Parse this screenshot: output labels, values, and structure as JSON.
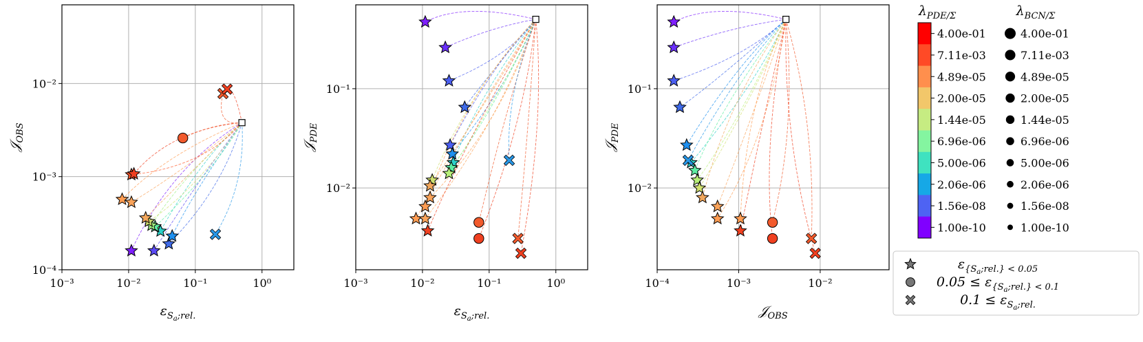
{
  "chart_data": {
    "type": "scatter",
    "x_scale": "log",
    "y_scale": "log",
    "grid": true,
    "panels": [
      {
        "xlabel": "ε_{S_a;rel.}",
        "ylabel": "𝒥_OBS",
        "xlim": [
          0.001,
          3.0
        ],
        "ylim": [
          0.0001,
          0.07
        ],
        "xticks": [
          "10⁻³",
          "10⁻²",
          "10⁻¹",
          "10⁰"
        ],
        "xtick_values": [
          0.001,
          0.01,
          0.1,
          1
        ],
        "yticks": [
          "10⁻⁴",
          "10⁻³",
          "10⁻²"
        ],
        "ytick_values": [
          0.0001,
          0.001,
          0.01
        ],
        "start_marker": {
          "x": 0.5,
          "y": 0.0038
        },
        "markers": [
          {
            "x": 0.011,
            "y": 0.00016,
            "marker": "star",
            "color": "#7f1fff"
          },
          {
            "x": 0.024,
            "y": 0.00016,
            "marker": "star",
            "color": "#5a4af4"
          },
          {
            "x": 0.04,
            "y": 0.00019,
            "marker": "star",
            "color": "#3f6ae8"
          },
          {
            "x": 0.045,
            "y": 0.00023,
            "marker": "star",
            "color": "#1e90f0"
          },
          {
            "x": 0.03,
            "y": 0.00026,
            "marker": "star",
            "color": "#2dd0c8"
          },
          {
            "x": 0.025,
            "y": 0.00029,
            "marker": "star",
            "color": "#5eeda2"
          },
          {
            "x": 0.022,
            "y": 0.0003,
            "marker": "star",
            "color": "#9ef080"
          },
          {
            "x": 0.02,
            "y": 0.00033,
            "marker": "star",
            "color": "#d0e070"
          },
          {
            "x": 0.018,
            "y": 0.00036,
            "marker": "star",
            "color": "#f2a75c"
          },
          {
            "x": 0.008,
            "y": 0.00057,
            "marker": "star",
            "color": "#ff9c52"
          },
          {
            "x": 0.011,
            "y": 0.00053,
            "marker": "star",
            "color": "#f9a35a"
          },
          {
            "x": 0.011,
            "y": 0.00105,
            "marker": "star",
            "color": "#ff5b2e"
          },
          {
            "x": 0.012,
            "y": 0.00107,
            "marker": "star",
            "color": "#f04020"
          },
          {
            "x": 0.065,
            "y": 0.0026,
            "marker": "circle",
            "color": "#f25a2c"
          },
          {
            "x": 0.2,
            "y": 0.00024,
            "marker": "cross",
            "color": "#2898e8"
          },
          {
            "x": 0.26,
            "y": 0.0078,
            "marker": "cross",
            "color": "#f25a2c"
          },
          {
            "x": 0.3,
            "y": 0.0087,
            "marker": "cross",
            "color": "#f04020"
          }
        ]
      },
      {
        "xlabel": "ε_{S_a;rel.}",
        "ylabel": "𝒥_PDE",
        "xlim": [
          0.001,
          3.0
        ],
        "ylim": [
          0.0015,
          0.7
        ],
        "xticks": [
          "10⁻³",
          "10⁻²",
          "10⁻¹",
          "10⁰"
        ],
        "xtick_values": [
          0.001,
          0.01,
          0.1,
          1
        ],
        "yticks": [
          "10⁻²",
          "10⁻¹"
        ],
        "ytick_values": [
          0.01,
          0.1
        ],
        "start_marker": {
          "x": 0.5,
          "y": 0.5
        },
        "markers": [
          {
            "x": 0.011,
            "y": 0.47,
            "marker": "star",
            "color": "#7f1fff"
          },
          {
            "x": 0.022,
            "y": 0.26,
            "marker": "star",
            "color": "#6a30fa"
          },
          {
            "x": 0.025,
            "y": 0.12,
            "marker": "star",
            "color": "#4a5ef0"
          },
          {
            "x": 0.043,
            "y": 0.065,
            "marker": "star",
            "color": "#3f6ae8"
          },
          {
            "x": 0.026,
            "y": 0.027,
            "marker": "star",
            "color": "#4a5ef0"
          },
          {
            "x": 0.028,
            "y": 0.022,
            "marker": "star",
            "color": "#1e90f0"
          },
          {
            "x": 0.029,
            "y": 0.018,
            "marker": "star",
            "color": "#2dd0c8"
          },
          {
            "x": 0.027,
            "y": 0.016,
            "marker": "star",
            "color": "#5eeda2"
          },
          {
            "x": 0.025,
            "y": 0.014,
            "marker": "star",
            "color": "#b8f078"
          },
          {
            "x": 0.014,
            "y": 0.012,
            "marker": "star",
            "color": "#d0e070"
          },
          {
            "x": 0.013,
            "y": 0.0105,
            "marker": "star",
            "color": "#f2a75c"
          },
          {
            "x": 0.013,
            "y": 0.008,
            "marker": "star",
            "color": "#f9a35a"
          },
          {
            "x": 0.011,
            "y": 0.0065,
            "marker": "star",
            "color": "#ff9c52"
          },
          {
            "x": 0.008,
            "y": 0.0049,
            "marker": "star",
            "color": "#ff9c52"
          },
          {
            "x": 0.011,
            "y": 0.0049,
            "marker": "star",
            "color": "#f9a35a"
          },
          {
            "x": 0.012,
            "y": 0.0037,
            "marker": "star",
            "color": "#f04020"
          },
          {
            "x": 0.07,
            "y": 0.0045,
            "marker": "circle",
            "color": "#f25a2c"
          },
          {
            "x": 0.07,
            "y": 0.0031,
            "marker": "circle",
            "color": "#f04020"
          },
          {
            "x": 0.2,
            "y": 0.019,
            "marker": "cross",
            "color": "#2898e8"
          },
          {
            "x": 0.27,
            "y": 0.0031,
            "marker": "cross",
            "color": "#f25a2c"
          },
          {
            "x": 0.3,
            "y": 0.0022,
            "marker": "cross",
            "color": "#f04020"
          }
        ]
      },
      {
        "xlabel": "𝒥_OBS",
        "ylabel": "𝒥_PDE",
        "xlim": [
          0.0001,
          0.07
        ],
        "ylim": [
          0.0015,
          0.7
        ],
        "xticks": [
          "10⁻⁴",
          "10⁻³",
          "10⁻²"
        ],
        "xtick_values": [
          0.0001,
          0.001,
          0.01
        ],
        "yticks": [
          "10⁻²",
          "10⁻¹"
        ],
        "ytick_values": [
          0.01,
          0.1
        ],
        "start_marker": {
          "x": 0.0038,
          "y": 0.5
        },
        "markers": [
          {
            "x": 0.00016,
            "y": 0.47,
            "marker": "star",
            "color": "#7f1fff"
          },
          {
            "x": 0.00016,
            "y": 0.26,
            "marker": "star",
            "color": "#6a30fa"
          },
          {
            "x": 0.00016,
            "y": 0.12,
            "marker": "star",
            "color": "#4a5ef0"
          },
          {
            "x": 0.00019,
            "y": 0.065,
            "marker": "star",
            "color": "#3f6ae8"
          },
          {
            "x": 0.00023,
            "y": 0.027,
            "marker": "star",
            "color": "#1e90f0"
          },
          {
            "x": 0.00026,
            "y": 0.018,
            "marker": "star",
            "color": "#2dd0c8"
          },
          {
            "x": 0.00029,
            "y": 0.015,
            "marker": "star",
            "color": "#5eeda2"
          },
          {
            "x": 0.00031,
            "y": 0.012,
            "marker": "star",
            "color": "#b8f078"
          },
          {
            "x": 0.00033,
            "y": 0.01,
            "marker": "star",
            "color": "#d0e070"
          },
          {
            "x": 0.00036,
            "y": 0.008,
            "marker": "star",
            "color": "#f2a75c"
          },
          {
            "x": 0.00055,
            "y": 0.0065,
            "marker": "star",
            "color": "#f9a35a"
          },
          {
            "x": 0.00055,
            "y": 0.0049,
            "marker": "star",
            "color": "#ff9c52"
          },
          {
            "x": 0.00105,
            "y": 0.0049,
            "marker": "star",
            "color": "#ff9c52"
          },
          {
            "x": 0.00105,
            "y": 0.0037,
            "marker": "star",
            "color": "#f04020"
          },
          {
            "x": 0.0026,
            "y": 0.0045,
            "marker": "circle",
            "color": "#f25a2c"
          },
          {
            "x": 0.0026,
            "y": 0.0031,
            "marker": "circle",
            "color": "#f04020"
          },
          {
            "x": 0.00024,
            "y": 0.019,
            "marker": "cross",
            "color": "#2898e8"
          },
          {
            "x": 0.0078,
            "y": 0.0031,
            "marker": "cross",
            "color": "#f25a2c"
          },
          {
            "x": 0.0087,
            "y": 0.0022,
            "marker": "cross",
            "color": "#f04020"
          }
        ]
      }
    ],
    "colorbar": {
      "title": "λ_PDE/Σ",
      "labels": [
        "4.00e-01",
        "7.11e-03",
        "4.89e-05",
        "2.00e-05",
        "1.44e-05",
        "6.96e-06",
        "5.00e-06",
        "2.06e-06",
        "1.56e-08",
        "1.00e-10"
      ],
      "colors": [
        "#ff0000",
        "#ff4a26",
        "#ff8f4d",
        "#f2c76a",
        "#c6ec82",
        "#84f5a0",
        "#3fe2c0",
        "#16a8e6",
        "#4e63f3",
        "#8000ff"
      ]
    },
    "size_legend": {
      "title": "λ_BCN/Σ",
      "labels": [
        "4.00e-01",
        "7.11e-03",
        "4.89e-05",
        "2.00e-05",
        "1.44e-05",
        "6.96e-06",
        "5.00e-06",
        "2.06e-06",
        "1.56e-08",
        "1.00e-10"
      ]
    },
    "marker_legend": [
      {
        "marker": "star",
        "label": "ε_{S_a;rel.} < 0.05"
      },
      {
        "marker": "circle",
        "label": "0.05 ≤ ε_{S_a;rel.} < 0.1"
      },
      {
        "marker": "cross",
        "label": "0.1 ≤ ε_{S_a;rel.}"
      }
    ]
  }
}
